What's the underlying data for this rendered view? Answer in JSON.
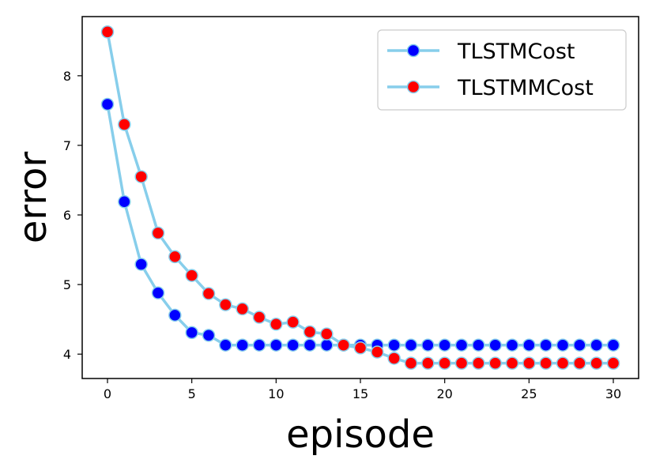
{
  "chart_data": {
    "type": "line",
    "xlabel": "episode",
    "ylabel": "error",
    "xlim": [
      -1.5,
      31.5
    ],
    "ylim": [
      3.65,
      8.85
    ],
    "xticks": [
      0,
      5,
      10,
      15,
      20,
      25,
      30
    ],
    "yticks": [
      4,
      5,
      6,
      7,
      8
    ],
    "grid": false,
    "legend_position": "top-right",
    "line_color": "#87ceeb",
    "x": [
      0,
      1,
      2,
      3,
      4,
      5,
      6,
      7,
      8,
      9,
      10,
      11,
      12,
      13,
      14,
      15,
      16,
      17,
      18,
      19,
      20,
      21,
      22,
      23,
      24,
      25,
      26,
      27,
      28,
      29,
      30
    ],
    "series": [
      {
        "name": "TLSTMCost",
        "marker_color": "#0000ff",
        "values": [
          7.59,
          6.19,
          5.29,
          4.88,
          4.56,
          4.31,
          4.27,
          4.13,
          4.13,
          4.13,
          4.13,
          4.13,
          4.13,
          4.13,
          4.13,
          4.13,
          4.13,
          4.13,
          4.13,
          4.13,
          4.13,
          4.13,
          4.13,
          4.13,
          4.13,
          4.13,
          4.13,
          4.13,
          4.13,
          4.13,
          4.13
        ]
      },
      {
        "name": "TLSTMMCost",
        "marker_color": "#ff0000",
        "values": [
          8.63,
          7.3,
          6.55,
          5.74,
          5.4,
          5.13,
          4.87,
          4.71,
          4.65,
          4.53,
          4.43,
          4.46,
          4.32,
          4.29,
          4.13,
          4.09,
          4.03,
          3.94,
          3.87,
          3.87,
          3.87,
          3.87,
          3.87,
          3.87,
          3.87,
          3.87,
          3.87,
          3.87,
          3.87,
          3.87,
          3.87
        ]
      }
    ]
  }
}
